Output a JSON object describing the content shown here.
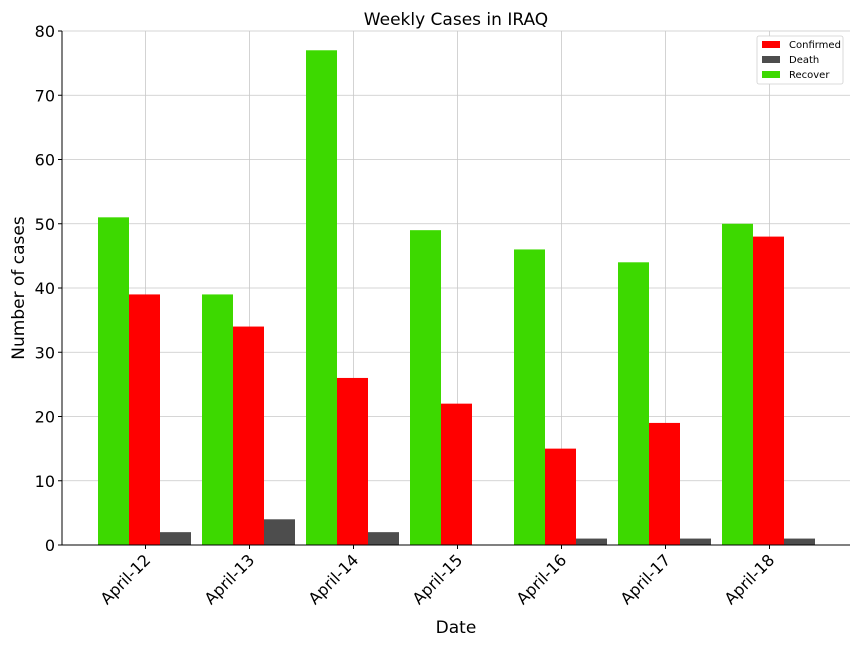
{
  "chart_data": {
    "type": "bar",
    "title": "Weekly Cases in IRAQ",
    "xlabel": "Date",
    "ylabel": "Number of cases",
    "categories": [
      "April-12",
      "April-13",
      "April-14",
      "April-15",
      "April-16",
      "April-17",
      "April-18"
    ],
    "series": [
      {
        "name": "Recover",
        "color": "#3dd900",
        "values": [
          51,
          39,
          77,
          49,
          46,
          44,
          50
        ]
      },
      {
        "name": "Confirmed",
        "color": "#ff0000",
        "values": [
          39,
          34,
          26,
          22,
          15,
          19,
          48
        ]
      },
      {
        "name": "Death",
        "color": "#4d4d4d",
        "values": [
          2,
          4,
          2,
          0,
          1,
          1,
          1
        ]
      }
    ],
    "legend_order": [
      "Confirmed",
      "Death",
      "Recover"
    ],
    "legend_position": "top-right",
    "ylim": [
      0,
      80
    ],
    "yticks": [
      0,
      10,
      20,
      30,
      40,
      50,
      60,
      70,
      80
    ],
    "grid": true,
    "xtick_rotation": 45
  }
}
